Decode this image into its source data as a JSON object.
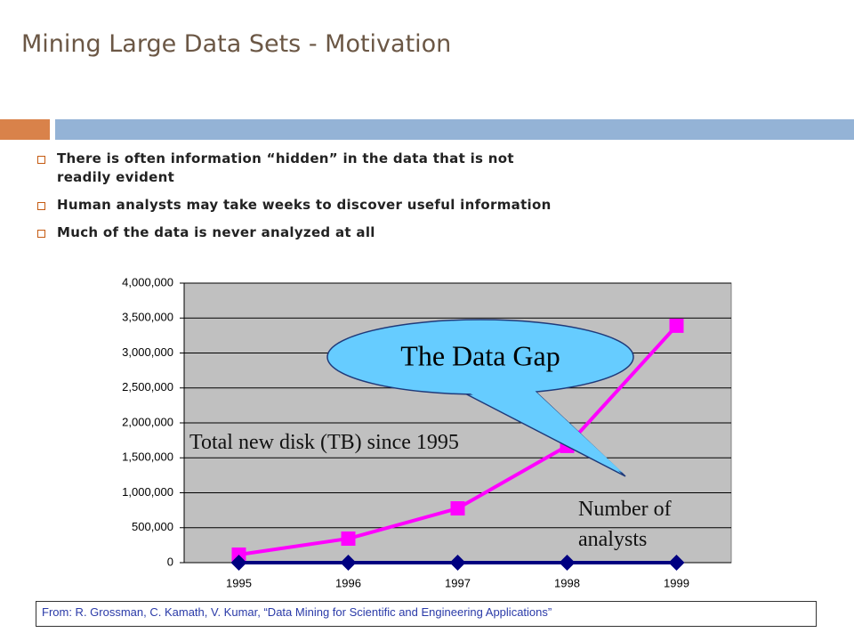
{
  "title": "Mining Large Data Sets - Motivation",
  "bullets": [
    "There is often information “hidden” in the data that is not readily evident",
    "Human analysts may take weeks to discover useful information",
    "Much of the data is never analyzed at all"
  ],
  "footer": "From: R. Grossman, C. Kamath, V. Kumar, “Data Mining for Scientific and Engineering Applications”",
  "chart_data": {
    "type": "line",
    "categories": [
      "1995",
      "1996",
      "1997",
      "1998",
      "1999"
    ],
    "series": [
      {
        "name": "Total new disk (TB) since 1995",
        "color": "#ff00ff",
        "values": [
          115000,
          344000,
          777000,
          1670000,
          3390000
        ]
      },
      {
        "name": "Number of analysts",
        "color": "#000080",
        "values": [
          0,
          0,
          0,
          0,
          0
        ]
      }
    ],
    "annotations": [
      "The Data Gap"
    ],
    "ylim": [
      0,
      4000000
    ],
    "yticks": [
      0,
      {
        "value": 500000,
        "label": "500,000"
      },
      {
        "value": 1000000,
        "label": "1,000,000"
      },
      {
        "value": 1500000,
        "label": "1,500,000"
      },
      {
        "value": 2000000,
        "label": "2,000,000"
      },
      {
        "value": 2500000,
        "label": "2,500,000"
      },
      {
        "value": 3000000,
        "label": "3,000,000"
      },
      {
        "value": 3500000,
        "label": "3,500,000"
      },
      {
        "value": 4000000,
        "label": "4,000,000"
      }
    ],
    "grid": true
  }
}
